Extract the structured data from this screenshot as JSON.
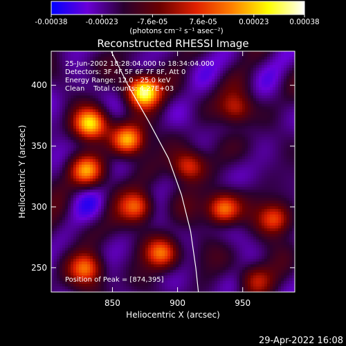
{
  "chart_data": {
    "type": "heatmap",
    "title": "Reconstructed RHESSI Image",
    "xlabel": "Heliocentric X (arcsec)",
    "ylabel": "Heliocentric Y (arcsec)",
    "xlim": [
      803,
      990
    ],
    "ylim": [
      230,
      428
    ],
    "xticks": [
      850,
      900,
      950
    ],
    "yticks": [
      250,
      300,
      350,
      400
    ],
    "colorbar": {
      "ticks": [
        "-0.00038",
        "-0.00023",
        "-7.6e-05",
        "7.6e-05",
        "0.00023",
        "0.00038"
      ],
      "range": [
        -0.00038,
        0.00038
      ],
      "unit_label": "(photons cm⁻² s⁻¹ asec⁻²)",
      "colors": [
        "#0000ff",
        "#6a00d8",
        "#2a0030",
        "#6a0000",
        "#e02000",
        "#ff8000",
        "#ffff00",
        "#ffffff"
      ]
    },
    "annotations": [
      "25-Jun-2002 18:28:04.000 to 18:34:04.000",
      "Detectors: 3F 4F 5F 6F 7F 8F, Att 0",
      "Energy Range: 12.0 - 25.0 keV",
      "Clean    Total counts: 4.27E+03",
      "Position of Peak = [874,395]"
    ],
    "peak": [
      874,
      395
    ],
    "hotspots": [
      {
        "x": 874,
        "y": 395,
        "intensity": 1.0
      },
      {
        "x": 833,
        "y": 368,
        "intensity": 0.75
      },
      {
        "x": 862,
        "y": 355,
        "intensity": 0.8
      },
      {
        "x": 830,
        "y": 330,
        "intensity": 0.6
      },
      {
        "x": 908,
        "y": 333,
        "intensity": 0.55
      },
      {
        "x": 935,
        "y": 298,
        "intensity": 0.7
      },
      {
        "x": 870,
        "y": 300,
        "intensity": 0.6
      },
      {
        "x": 888,
        "y": 262,
        "intensity": 0.6
      },
      {
        "x": 975,
        "y": 290,
        "intensity": 0.55
      },
      {
        "x": 830,
        "y": 250,
        "intensity": 0.6
      },
      {
        "x": 945,
        "y": 380,
        "intensity": 0.45
      },
      {
        "x": 960,
        "y": 240,
        "intensity": 0.4
      }
    ],
    "limb_curve": [
      [
        849,
        428
      ],
      [
        862,
        400
      ],
      [
        878,
        370
      ],
      [
        893,
        340
      ],
      [
        903,
        310
      ],
      [
        910,
        280
      ],
      [
        914,
        250
      ],
      [
        916,
        230
      ]
    ],
    "footer": "29-Apr-2022 16:08"
  }
}
